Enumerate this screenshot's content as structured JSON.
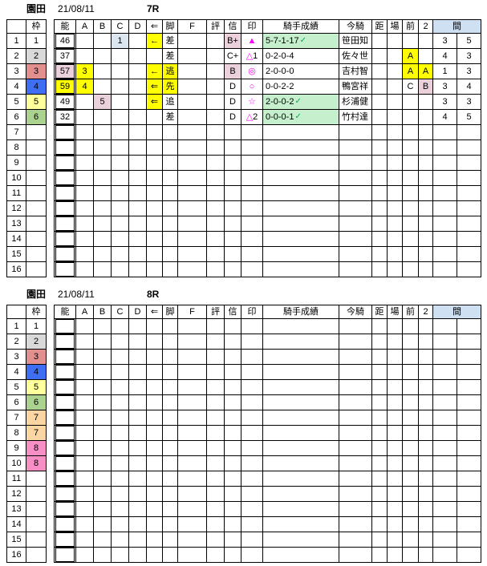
{
  "colors": {
    "y": "#ffff00",
    "pk": "#ead1dc",
    "gr": "#c6efce",
    "lb": "#dce6f1",
    "header_blue": "#cfe0f2",
    "w1": "#ffffff",
    "w2": "#d9d9d9",
    "w3": "#e2908e",
    "w4": "#3e6ef2",
    "w5": "#ffff9c",
    "w6": "#abd28f",
    "w7": "#fbd5a2",
    "w8": "#f78fc5",
    "mark": "#ff00ff",
    "check": "#00b050"
  },
  "tables": [
    {
      "title": {
        "venue": "園田",
        "date": "21/08/11",
        "race": "7R"
      },
      "headers": {
        "num": "",
        "waku": "枠",
        "gap": "",
        "noh": "能",
        "A": "A",
        "B": "B",
        "C": "C",
        "D": "D",
        "arr": "⇐",
        "ashi": "脚",
        "F": "F",
        "hyo": "評",
        "shin": "信",
        "in": "印",
        "seiseki": "騎手成績",
        "kisha": "今騎",
        "kyo": "距",
        "ba": "場",
        "mae": "前",
        "two": "2",
        "ma": "間"
      },
      "rows": [
        {
          "num": "1",
          "waku": {
            "t": "1",
            "bg": "w1"
          },
          "noh": {
            "t": "46"
          },
          "C": {
            "t": "1",
            "bg": "lb"
          },
          "arr": {
            "t": "←",
            "bg": "y"
          },
          "ashi": {
            "t": "差"
          },
          "shin": {
            "t": "B+",
            "bg": "pk"
          },
          "in": {
            "sym": "▲",
            "num": ""
          },
          "seiseki": {
            "t": "5-7-1-17",
            "chk": true,
            "bg": "gr"
          },
          "kisha": "笹田知",
          "ma1": "3",
          "ma2": "5"
        },
        {
          "num": "2",
          "waku": {
            "t": "2",
            "bg": "w2"
          },
          "noh": {
            "t": "37"
          },
          "ashi": {
            "t": "差"
          },
          "shin": {
            "t": "C+"
          },
          "in": {
            "sym": "△",
            "num": "1"
          },
          "seiseki": {
            "t": "0-2-0-4"
          },
          "kisha": "佐々世",
          "mae": {
            "t": "A",
            "bg": "y"
          },
          "ma1": "4",
          "ma2": "3"
        },
        {
          "num": "3",
          "waku": {
            "t": "3",
            "bg": "w3"
          },
          "noh": {
            "t": "57",
            "bg": "pk"
          },
          "A": {
            "t": "3",
            "bg": "y"
          },
          "arr": {
            "t": "←",
            "bg": "y"
          },
          "ashi": {
            "t": "逃",
            "bg": "y"
          },
          "shin": {
            "t": "B",
            "bg": "pk"
          },
          "in": {
            "sym": "◎",
            "num": ""
          },
          "seiseki": {
            "t": "2-0-0-0"
          },
          "kisha": "吉村智",
          "mae": {
            "t": "A",
            "bg": "y"
          },
          "two": {
            "t": "A",
            "bg": "y"
          },
          "ma1": "1",
          "ma2": "3"
        },
        {
          "num": "4",
          "waku": {
            "t": "4",
            "bg": "w4"
          },
          "noh": {
            "t": "59",
            "bg": "y"
          },
          "A": {
            "t": "4",
            "bg": "y"
          },
          "arr": {
            "t": "⇐",
            "bg": "y"
          },
          "ashi": {
            "t": "先",
            "bg": "y"
          },
          "shin": {
            "t": "D"
          },
          "in": {
            "sym": "○",
            "num": ""
          },
          "seiseki": {
            "t": "0-0-2-2"
          },
          "kisha": "鴨宮祥",
          "mae": {
            "t": "C"
          },
          "two": {
            "t": "B",
            "bg": "pk"
          },
          "ma1": "3",
          "ma2": "4"
        },
        {
          "num": "5",
          "waku": {
            "t": "5",
            "bg": "w5"
          },
          "noh": {
            "t": "49"
          },
          "B": {
            "t": "5",
            "bg": "pk"
          },
          "arr": {
            "t": "⇐",
            "bg": "y"
          },
          "ashi": {
            "t": "追"
          },
          "shin": {
            "t": "D"
          },
          "in": {
            "sym": "☆",
            "num": ""
          },
          "seiseki": {
            "t": "2-0-0-2",
            "chk": true,
            "bg": "gr"
          },
          "kisha": "杉浦健",
          "ma1": "3",
          "ma2": "3"
        },
        {
          "num": "6",
          "waku": {
            "t": "6",
            "bg": "w6"
          },
          "noh": {
            "t": "32"
          },
          "ashi": {
            "t": "差"
          },
          "shin": {
            "t": "D"
          },
          "in": {
            "sym": "△",
            "num": "2"
          },
          "seiseki": {
            "t": "0-0-0-1",
            "chk": true,
            "bg": "gr"
          },
          "kisha": "竹村達",
          "ma1": "4",
          "ma2": "5"
        },
        {
          "num": "7"
        },
        {
          "num": "8"
        },
        {
          "num": "9"
        },
        {
          "num": "10"
        },
        {
          "num": "11"
        },
        {
          "num": "12"
        },
        {
          "num": "13"
        },
        {
          "num": "14"
        },
        {
          "num": "15"
        },
        {
          "num": "16"
        }
      ]
    },
    {
      "title": {
        "venue": "園田",
        "date": "21/08/11",
        "race": "8R"
      },
      "headers": {
        "num": "",
        "waku": "枠",
        "gap": "",
        "noh": "能",
        "A": "A",
        "B": "B",
        "C": "C",
        "D": "D",
        "arr": "⇐",
        "ashi": "脚",
        "F": "F",
        "hyo": "評",
        "shin": "信",
        "in": "印",
        "seiseki": "騎手成績",
        "kisha": "今騎",
        "kyo": "距",
        "ba": "場",
        "mae": "前",
        "two": "2",
        "ma": "間"
      },
      "rows": [
        {
          "num": "1",
          "waku": {
            "t": "1",
            "bg": "w1"
          }
        },
        {
          "num": "2",
          "waku": {
            "t": "2",
            "bg": "w2"
          }
        },
        {
          "num": "3",
          "waku": {
            "t": "3",
            "bg": "w3"
          }
        },
        {
          "num": "4",
          "waku": {
            "t": "4",
            "bg": "w4"
          }
        },
        {
          "num": "5",
          "waku": {
            "t": "5",
            "bg": "w5"
          }
        },
        {
          "num": "6",
          "waku": {
            "t": "6",
            "bg": "w6"
          }
        },
        {
          "num": "7",
          "waku": {
            "t": "7",
            "bg": "w7"
          }
        },
        {
          "num": "8",
          "waku": {
            "t": "7",
            "bg": "w7"
          }
        },
        {
          "num": "9",
          "waku": {
            "t": "8",
            "bg": "w8"
          }
        },
        {
          "num": "10",
          "waku": {
            "t": "8",
            "bg": "w8"
          }
        },
        {
          "num": "11"
        },
        {
          "num": "12"
        },
        {
          "num": "13"
        },
        {
          "num": "14"
        },
        {
          "num": "15"
        },
        {
          "num": "16"
        }
      ]
    }
  ]
}
